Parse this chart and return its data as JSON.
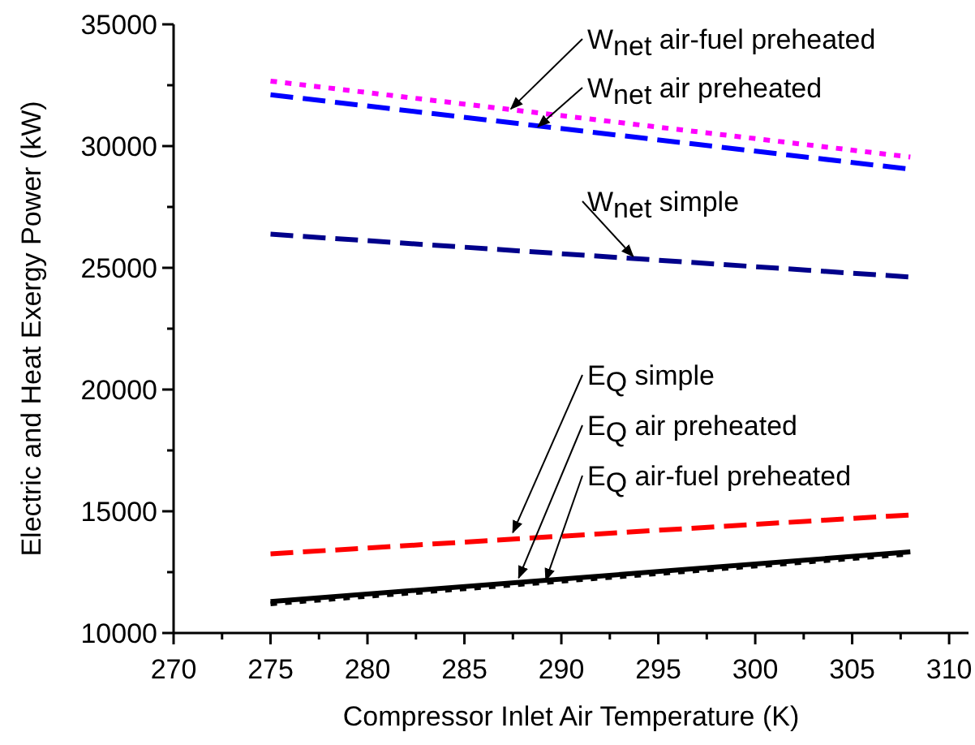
{
  "chart_data": {
    "type": "line",
    "xlabel": "Compressor Inlet Air Temperature (K)",
    "ylabel": "Electric and Heat Exergy Power (kW)",
    "xlim": [
      270,
      311
    ],
    "xticks": [
      270,
      {
        "value": 272.5,
        "label": null
      },
      275,
      {
        "value": 277.5,
        "label": null
      },
      280,
      {
        "value": 282.5,
        "label": null
      },
      285,
      {
        "value": 287.5,
        "label": null
      },
      290,
      {
        "value": 292.5,
        "label": null
      },
      295,
      {
        "value": 297.5,
        "label": null
      },
      300,
      {
        "value": 302.5,
        "label": null
      },
      305,
      {
        "value": 307.5,
        "label": null
      },
      310
    ],
    "ylim": [
      10000,
      35000
    ],
    "yticks": [
      10000,
      {
        "value": 12500,
        "label": null
      },
      15000,
      {
        "value": 17500,
        "label": null
      },
      20000,
      {
        "value": 22500,
        "label": null
      },
      25000,
      {
        "value": 27500,
        "label": null
      },
      30000,
      {
        "value": 32500,
        "label": null
      },
      35000
    ],
    "grid": false,
    "marker": "none",
    "x": [
      275,
      308
    ],
    "series": [
      {
        "color": "#ff00ff",
        "values": [
          32670,
          29550
        ],
        "line_style": "dotted"
      },
      {
        "color": "#0000ff",
        "values": [
          32110,
          29050
        ],
        "line_style": "dashed"
      },
      {
        "color": "#00008b",
        "values": [
          26380,
          24620
        ],
        "line_style": "dashed"
      },
      {
        "color": "#ff0000",
        "values": [
          13250,
          14850
        ],
        "line_style": "dashed"
      },
      {
        "color": "#000000",
        "values": [
          11290,
          13330
        ],
        "line_style": "solid"
      },
      {
        "color": "#000000",
        "values": [
          11200,
          13250
        ],
        "line_style": "dotted"
      }
    ],
    "annotations": [
      {
        "text": "W$_{net}$ air-fuel preheated",
        "x": 287.4,
        "y": 31530
      },
      {
        "text": "W$_{net}$ air preheated",
        "x": 288.8,
        "y": 30800
      },
      {
        "text": "W$_{net}$ simple",
        "x": 293.7,
        "y": 25470
      },
      {
        "text": "E$_{Q}$ simple",
        "x": 287.5,
        "y": 14130
      },
      {
        "text": "E$_{Q}$ air preheated",
        "x": 287.8,
        "y": 12270
      },
      {
        "text": "E$_{Q}$ air-fuel preheated",
        "x": 289.2,
        "y": 12170
      }
    ]
  }
}
